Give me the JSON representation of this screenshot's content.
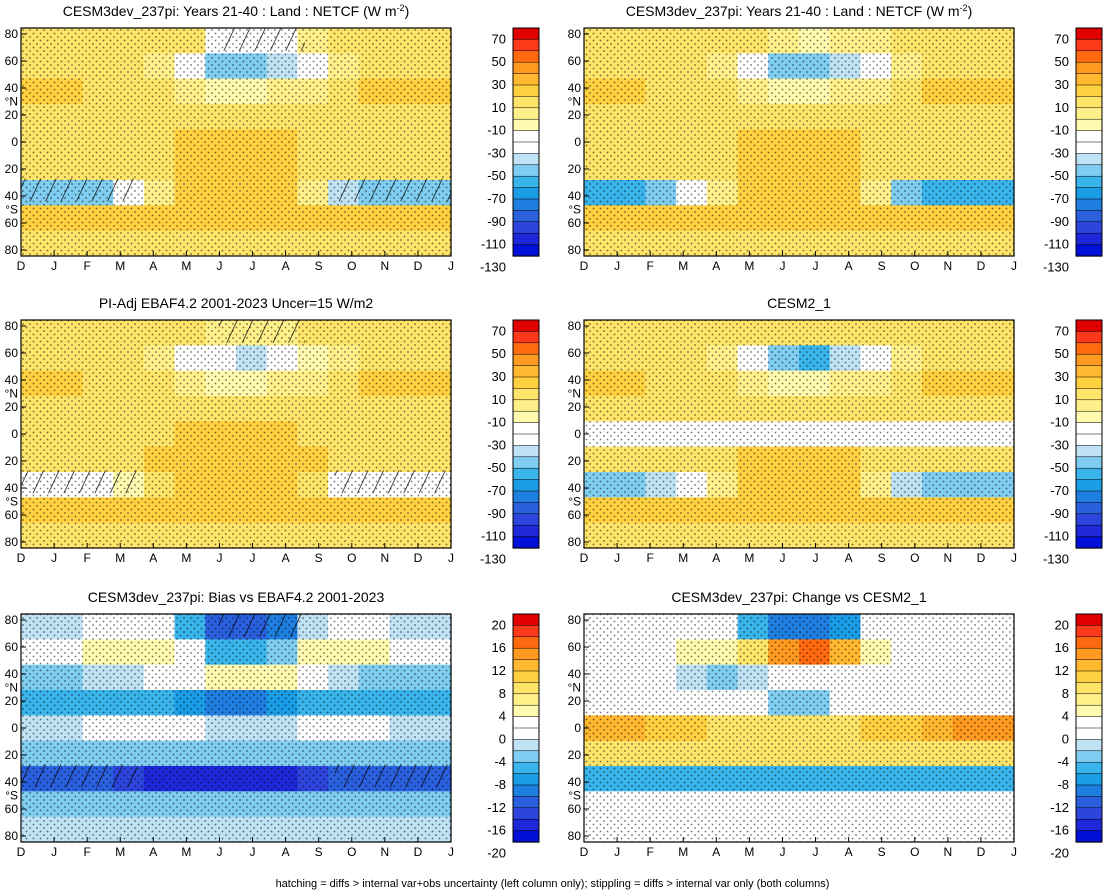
{
  "caption": "hatching = diffs > internal var+obs uncertainty (left column only); stippling = diffs > internal var only (both columns)",
  "colorbars": {
    "netcf": {
      "labels": [
        "70",
        "50",
        "30",
        "10",
        "-10",
        "-30",
        "-50",
        "-70",
        "-90",
        "-110",
        "-130"
      ],
      "colors": [
        "#e00000",
        "#ff3a1a",
        "#ff6a10",
        "#ff9a20",
        "#ffb830",
        "#ffd040",
        "#ffe46a",
        "#fff08a",
        "#fffab0",
        "#ffffff",
        "#ffffff",
        "#bfe3f5",
        "#7fcdf0",
        "#39b5ec",
        "#1a9ce6",
        "#1f7fe0",
        "#2a60dd",
        "#2d45dc",
        "#1e28d8",
        "#0010d8"
      ]
    },
    "diff": {
      "labels": [
        "20",
        "16",
        "12",
        "8",
        "4",
        "0",
        "-4",
        "-8",
        "-12",
        "-16",
        "-20"
      ],
      "colors": [
        "#e00000",
        "#ff3a1a",
        "#ff6a10",
        "#ff9a20",
        "#ffb830",
        "#ffd040",
        "#ffe46a",
        "#fff08a",
        "#fffab0",
        "#ffffff",
        "#ffffff",
        "#bfe3f5",
        "#7fcdf0",
        "#39b5ec",
        "#1a9ce6",
        "#1f7fe0",
        "#2a60dd",
        "#2d45dc",
        "#1e28d8",
        "#0010d8"
      ]
    }
  },
  "chart_data": [
    {
      "type": "heatmap",
      "title": "CESM3dev_237pi: Years 21-40 : Land : NETCF (W m",
      "title_sup": "-2",
      "title_end": ")",
      "x": [
        "D",
        "J",
        "F",
        "M",
        "A",
        "M",
        "J",
        "J",
        "A",
        "S",
        "O",
        "N",
        "D",
        "J"
      ],
      "y_ticks": [
        "80",
        "60",
        "40",
        "20",
        "0",
        "20",
        "40",
        "60",
        "80"
      ],
      "y_hemi": {
        "N": "°N",
        "S": "°S"
      },
      "ylim": [
        -90,
        90
      ],
      "colorbar": "netcf",
      "hatching": true,
      "stippling": true,
      "value_grid_note": "latitude rows 80N..80S, monthly columns",
      "values": [
        [
          10,
          10,
          10,
          10,
          10,
          10,
          -20,
          -25,
          -20,
          5,
          10,
          10,
          10,
          10
        ],
        [
          15,
          15,
          15,
          10,
          0,
          -30,
          -60,
          -60,
          -50,
          -20,
          5,
          15,
          15,
          15
        ],
        [
          20,
          20,
          15,
          15,
          10,
          5,
          -10,
          -15,
          -5,
          5,
          15,
          20,
          20,
          20
        ],
        [
          15,
          15,
          15,
          15,
          15,
          15,
          10,
          10,
          10,
          15,
          15,
          15,
          15,
          15
        ],
        [
          10,
          10,
          10,
          15,
          15,
          20,
          20,
          20,
          20,
          15,
          10,
          10,
          10,
          10
        ],
        [
          15,
          15,
          15,
          15,
          15,
          20,
          25,
          25,
          20,
          15,
          15,
          15,
          15,
          15
        ],
        [
          -60,
          -60,
          -55,
          -40,
          5,
          20,
          25,
          25,
          20,
          5,
          -45,
          -60,
          -60,
          -60
        ],
        [
          20,
          20,
          20,
          20,
          20,
          20,
          20,
          20,
          20,
          20,
          20,
          20,
          20,
          20
        ],
        [
          15,
          15,
          15,
          15,
          15,
          15,
          15,
          15,
          15,
          15,
          15,
          15,
          15,
          15
        ]
      ]
    },
    {
      "type": "heatmap",
      "title": "CESM3dev_237pi: Years 21-40 : Land : NETCF (W m",
      "title_sup": "-2",
      "title_end": ")",
      "x": [
        "D",
        "J",
        "F",
        "M",
        "A",
        "M",
        "J",
        "J",
        "A",
        "S",
        "O",
        "N",
        "D",
        "J"
      ],
      "y_ticks": [
        "80",
        "60",
        "40",
        "20",
        "0",
        "20",
        "40",
        "60",
        "80"
      ],
      "y_hemi": {
        "N": "°N",
        "S": "°S"
      },
      "ylim": [
        -90,
        90
      ],
      "colorbar": "netcf",
      "hatching": false,
      "stippling": true,
      "values": [
        [
          10,
          10,
          10,
          10,
          10,
          10,
          -5,
          -10,
          -5,
          5,
          10,
          10,
          10,
          10
        ],
        [
          15,
          15,
          15,
          10,
          0,
          -30,
          -60,
          -60,
          -50,
          -20,
          5,
          15,
          15,
          15
        ],
        [
          20,
          20,
          15,
          15,
          10,
          5,
          -10,
          -15,
          -5,
          5,
          15,
          20,
          20,
          20
        ],
        [
          15,
          15,
          15,
          15,
          15,
          15,
          10,
          10,
          10,
          15,
          15,
          15,
          15,
          15
        ],
        [
          10,
          10,
          10,
          15,
          15,
          20,
          20,
          20,
          20,
          15,
          10,
          10,
          10,
          10
        ],
        [
          15,
          15,
          15,
          15,
          15,
          20,
          25,
          25,
          20,
          15,
          15,
          15,
          15,
          15
        ],
        [
          -70,
          -70,
          -60,
          -40,
          5,
          20,
          25,
          25,
          20,
          5,
          -55,
          -70,
          -70,
          -70
        ],
        [
          20,
          20,
          20,
          20,
          20,
          20,
          20,
          20,
          20,
          20,
          20,
          20,
          20,
          20
        ],
        [
          15,
          15,
          15,
          15,
          15,
          15,
          15,
          15,
          15,
          15,
          15,
          15,
          15,
          15
        ]
      ]
    },
    {
      "type": "heatmap",
      "title": "PI-Adj EBAF4.2 2001-2023 Uncer=15 W/m2",
      "title_sup": "",
      "title_end": "",
      "x": [
        "D",
        "J",
        "F",
        "M",
        "A",
        "M",
        "J",
        "J",
        "A",
        "S",
        "O",
        "N",
        "D",
        "J"
      ],
      "y_ticks": [
        "80",
        "60",
        "40",
        "20",
        "0",
        "20",
        "40",
        "60",
        "80"
      ],
      "y_hemi": {
        "N": "°N",
        "S": "°S"
      },
      "ylim": [
        -90,
        90
      ],
      "colorbar": "netcf",
      "hatching": true,
      "stippling": true,
      "values": [
        [
          10,
          10,
          10,
          10,
          10,
          10,
          5,
          5,
          5,
          10,
          10,
          10,
          10,
          10
        ],
        [
          15,
          15,
          15,
          10,
          0,
          -20,
          -40,
          -45,
          -35,
          -10,
          5,
          15,
          15,
          15
        ],
        [
          20,
          20,
          15,
          15,
          10,
          5,
          -10,
          -15,
          -5,
          5,
          15,
          20,
          20,
          20
        ],
        [
          15,
          15,
          15,
          15,
          15,
          15,
          10,
          10,
          10,
          15,
          15,
          15,
          15,
          15
        ],
        [
          10,
          10,
          10,
          15,
          15,
          20,
          20,
          20,
          20,
          15,
          10,
          10,
          10,
          10
        ],
        [
          15,
          15,
          15,
          15,
          20,
          25,
          30,
          30,
          25,
          20,
          15,
          15,
          15,
          15
        ],
        [
          -30,
          -30,
          -25,
          -10,
          10,
          25,
          30,
          30,
          25,
          10,
          -20,
          -30,
          -30,
          -30
        ],
        [
          20,
          20,
          20,
          20,
          20,
          20,
          20,
          20,
          20,
          20,
          20,
          20,
          20,
          20
        ],
        [
          15,
          15,
          15,
          15,
          15,
          15,
          15,
          15,
          15,
          15,
          15,
          15,
          15,
          15
        ]
      ]
    },
    {
      "type": "heatmap",
      "title": "CESM2_1",
      "title_sup": "",
      "title_end": "",
      "x": [
        "D",
        "J",
        "F",
        "M",
        "A",
        "M",
        "J",
        "J",
        "A",
        "S",
        "O",
        "N",
        "D",
        "J"
      ],
      "y_ticks": [
        "80",
        "60",
        "40",
        "20",
        "0",
        "20",
        "40",
        "60",
        "80"
      ],
      "y_hemi": {
        "N": "°N",
        "S": "°S"
      },
      "ylim": [
        -90,
        90
      ],
      "colorbar": "netcf",
      "hatching": false,
      "stippling": true,
      "values": [
        [
          10,
          10,
          10,
          10,
          10,
          10,
          10,
          10,
          10,
          10,
          10,
          10,
          10,
          10
        ],
        [
          15,
          15,
          15,
          10,
          0,
          -20,
          -60,
          -70,
          -50,
          -20,
          5,
          15,
          15,
          15
        ],
        [
          20,
          20,
          15,
          15,
          10,
          5,
          -10,
          -15,
          -5,
          5,
          15,
          20,
          20,
          20
        ],
        [
          15,
          15,
          15,
          15,
          15,
          15,
          10,
          10,
          10,
          15,
          15,
          15,
          15,
          15
        ],
        [
          -20,
          -20,
          -20,
          -20,
          -20,
          -20,
          -20,
          -20,
          -20,
          -20,
          -20,
          -20,
          -20,
          -20
        ],
        [
          15,
          15,
          15,
          15,
          15,
          20,
          25,
          25,
          20,
          15,
          15,
          15,
          15,
          15
        ],
        [
          -60,
          -60,
          -50,
          -30,
          5,
          20,
          25,
          25,
          20,
          5,
          -50,
          -60,
          -60,
          -60
        ],
        [
          20,
          20,
          20,
          20,
          20,
          20,
          20,
          20,
          20,
          20,
          20,
          20,
          20,
          20
        ],
        [
          15,
          15,
          15,
          15,
          15,
          15,
          15,
          15,
          15,
          15,
          15,
          15,
          15,
          15
        ]
      ]
    },
    {
      "type": "heatmap",
      "title": "CESM3dev_237pi: Bias vs EBAF4.2 2001-2023",
      "title_sup": "",
      "title_end": "",
      "x": [
        "D",
        "J",
        "F",
        "M",
        "A",
        "M",
        "J",
        "J",
        "A",
        "S",
        "O",
        "N",
        "D",
        "J"
      ],
      "y_ticks": [
        "80",
        "60",
        "40",
        "20",
        "0",
        "20",
        "40",
        "60",
        "80"
      ],
      "y_hemi": {
        "N": "°N",
        "S": "°S"
      },
      "ylim": [
        -90,
        90
      ],
      "colorbar": "diff",
      "hatching": true,
      "stippling": true,
      "values": [
        [
          -4,
          -4,
          0,
          0,
          0,
          -8,
          -16,
          -16,
          -14,
          -4,
          0,
          0,
          -4,
          -4
        ],
        [
          0,
          0,
          4,
          4,
          4,
          0,
          -8,
          -8,
          -6,
          4,
          4,
          4,
          0,
          0
        ],
        [
          -6,
          -6,
          -4,
          -4,
          0,
          0,
          4,
          4,
          4,
          0,
          -4,
          -6,
          -6,
          -6
        ],
        [
          -8,
          -8,
          -8,
          -8,
          -8,
          -10,
          -12,
          -12,
          -10,
          -8,
          -8,
          -8,
          -8,
          -8
        ],
        [
          -4,
          -4,
          0,
          0,
          -2,
          -2,
          -4,
          -4,
          -4,
          -2,
          0,
          0,
          -4,
          -4
        ],
        [
          -6,
          -6,
          -6,
          -6,
          -6,
          -6,
          -6,
          -6,
          -6,
          -6,
          -6,
          -6,
          -6,
          -6
        ],
        [
          -16,
          -16,
          -16,
          -18,
          -20,
          -20,
          -20,
          -20,
          -20,
          -18,
          -16,
          -16,
          -16,
          -16
        ],
        [
          -6,
          -6,
          -6,
          -6,
          -6,
          -6,
          -6,
          -6,
          -6,
          -6,
          -6,
          -6,
          -6,
          -6
        ],
        [
          -4,
          -4,
          -4,
          -4,
          -4,
          -4,
          -4,
          -4,
          -4,
          -4,
          -4,
          -4,
          -4,
          -4
        ]
      ]
    },
    {
      "type": "heatmap",
      "title": "CESM3dev_237pi: Change vs CESM2_1",
      "title_sup": "",
      "title_end": "",
      "x": [
        "D",
        "J",
        "F",
        "M",
        "A",
        "M",
        "J",
        "J",
        "A",
        "S",
        "O",
        "N",
        "D",
        "J"
      ],
      "y_ticks": [
        "80",
        "60",
        "40",
        "20",
        "0",
        "20",
        "40",
        "60",
        "80"
      ],
      "y_hemi": {
        "N": "°N",
        "S": "°S"
      },
      "ylim": [
        -90,
        90
      ],
      "colorbar": "diff",
      "hatching": false,
      "stippling": true,
      "values": [
        [
          0,
          0,
          0,
          0,
          0,
          -8,
          -14,
          -14,
          -10,
          0,
          0,
          0,
          0,
          0
        ],
        [
          0,
          0,
          0,
          4,
          4,
          8,
          16,
          18,
          14,
          4,
          0,
          0,
          0,
          0
        ],
        [
          0,
          0,
          0,
          -4,
          -6,
          -4,
          0,
          0,
          0,
          0,
          0,
          0,
          0,
          0
        ],
        [
          0,
          0,
          0,
          0,
          0,
          0,
          -6,
          -6,
          0,
          0,
          0,
          0,
          0,
          0
        ],
        [
          14,
          14,
          12,
          10,
          8,
          8,
          8,
          8,
          8,
          10,
          12,
          14,
          16,
          16
        ],
        [
          8,
          8,
          8,
          8,
          8,
          8,
          8,
          8,
          8,
          8,
          8,
          8,
          8,
          8
        ],
        [
          -8,
          -8,
          -8,
          -8,
          -8,
          -8,
          -8,
          -8,
          -8,
          -8,
          -8,
          -8,
          -8,
          -8
        ],
        [
          0,
          0,
          0,
          0,
          0,
          0,
          0,
          0,
          0,
          0,
          0,
          0,
          0,
          0
        ],
        [
          0,
          0,
          0,
          0,
          0,
          0,
          0,
          0,
          0,
          0,
          0,
          0,
          0,
          0
        ]
      ]
    }
  ]
}
